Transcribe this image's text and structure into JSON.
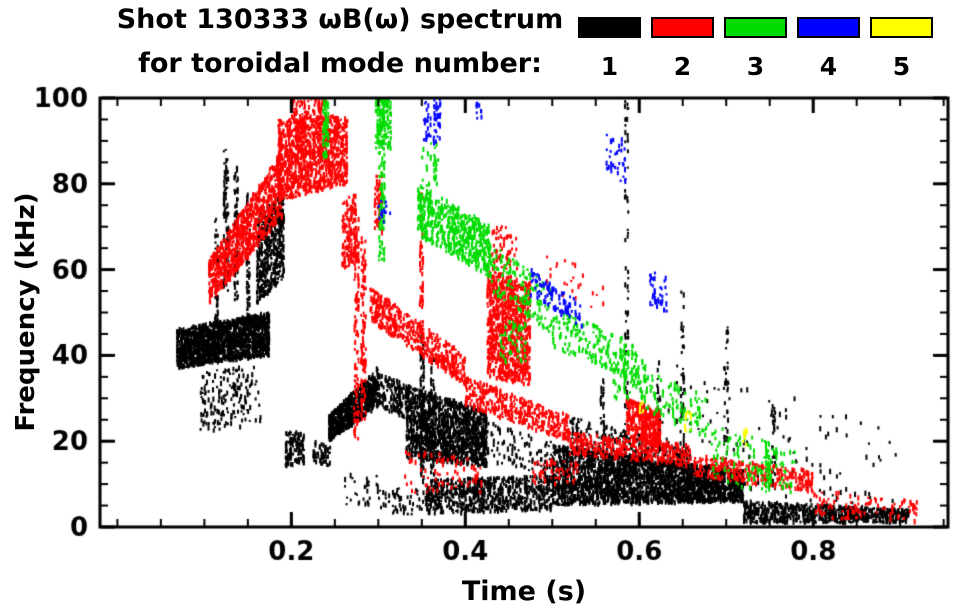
{
  "chart_data": {
    "type": "scatter",
    "title": "Shot 130333 ωB(ω) spectrum",
    "subtitle": "for toroidal mode number:",
    "xlabel": "Time (s)",
    "ylabel": "Frequency (kHz)",
    "xlim": [
      -0.02,
      0.955
    ],
    "ylim": [
      0,
      100
    ],
    "xticks": [
      0.2,
      0.4,
      0.6,
      0.8
    ],
    "xtick_labels": [
      "0.2",
      "0.4",
      "0.6",
      "0.8"
    ],
    "yticks": [
      0,
      20,
      40,
      60,
      80,
      100
    ],
    "ytick_labels": [
      "0",
      "20",
      "40",
      "60",
      "80",
      "100"
    ],
    "x_minor_step": 0.05,
    "y_minor_step": 5,
    "grid": false,
    "legend_position": "top-right",
    "legend": [
      {
        "label": "1",
        "color": "#000000"
      },
      {
        "label": "2",
        "color": "#ff0000"
      },
      {
        "label": "3",
        "color": "#00dc00"
      },
      {
        "label": "4",
        "color": "#0000ff"
      },
      {
        "label": "5",
        "color": "#ffff00"
      }
    ],
    "cluster_format": "[t_start, t_end, f_low_at_start, f_high_at_start, f_low_at_end, f_high_at_end, n_points]",
    "series": [
      {
        "name": "n=1",
        "mode": 1,
        "color": "#000000",
        "clusters": [
          [
            0.068,
            0.175,
            37,
            46,
            40,
            50,
            1600
          ],
          [
            0.095,
            0.165,
            22,
            36,
            24,
            38,
            180
          ],
          [
            0.122,
            0.128,
            55,
            88,
            55,
            88,
            90
          ],
          [
            0.134,
            0.139,
            50,
            85,
            50,
            85,
            70
          ],
          [
            0.148,
            0.153,
            46,
            78,
            46,
            78,
            60
          ],
          [
            0.112,
            0.116,
            48,
            72,
            48,
            72,
            40
          ],
          [
            0.16,
            0.192,
            52,
            72,
            58,
            78,
            500
          ],
          [
            0.193,
            0.215,
            14,
            22,
            15,
            22,
            120
          ],
          [
            0.225,
            0.245,
            15,
            20,
            14,
            19,
            60
          ],
          [
            0.243,
            0.3,
            20,
            26,
            28,
            37,
            700
          ],
          [
            0.3,
            0.335,
            28,
            36,
            25,
            33,
            150
          ],
          [
            0.332,
            0.425,
            16,
            33,
            14,
            27,
            1300
          ],
          [
            0.348,
            0.353,
            10,
            45,
            10,
            45,
            80
          ],
          [
            0.36,
            0.365,
            8,
            40,
            8,
            40,
            60
          ],
          [
            0.355,
            0.5,
            3,
            11,
            4,
            12,
            700
          ],
          [
            0.5,
            0.72,
            5,
            19,
            6,
            13,
            2600
          ],
          [
            0.52,
            0.66,
            18,
            26,
            12,
            18,
            300
          ],
          [
            0.72,
            0.91,
            1,
            6,
            1,
            4,
            700
          ],
          [
            0.583,
            0.588,
            20,
            100,
            20,
            100,
            60
          ],
          [
            0.647,
            0.652,
            15,
            55,
            15,
            55,
            40
          ],
          [
            0.697,
            0.703,
            12,
            47,
            12,
            47,
            40
          ],
          [
            0.752,
            0.757,
            8,
            30,
            8,
            30,
            30
          ],
          [
            0.62,
            0.625,
            15,
            37,
            15,
            37,
            25
          ],
          [
            0.555,
            0.56,
            20,
            35,
            20,
            35,
            25
          ],
          [
            0.6,
            0.9,
            8,
            40,
            5,
            25,
            120
          ],
          [
            0.3,
            0.36,
            3,
            9,
            3,
            9,
            60
          ],
          [
            0.26,
            0.3,
            5,
            12,
            5,
            12,
            30
          ],
          [
            0.42,
            0.5,
            15,
            25,
            12,
            20,
            100
          ]
        ]
      },
      {
        "name": "n=2",
        "mode": 2,
        "color": "#ff0000",
        "clusters": [
          [
            0.105,
            0.19,
            52,
            62,
            72,
            88,
            900
          ],
          [
            0.185,
            0.265,
            76,
            95,
            80,
            96,
            1100
          ],
          [
            0.2,
            0.24,
            95,
            100,
            95,
            100,
            80
          ],
          [
            0.272,
            0.278,
            20,
            72,
            20,
            72,
            120
          ],
          [
            0.28,
            0.286,
            25,
            68,
            25,
            68,
            100
          ],
          [
            0.258,
            0.275,
            60,
            76,
            62,
            78,
            150
          ],
          [
            0.295,
            0.305,
            68,
            82,
            68,
            82,
            60
          ],
          [
            0.29,
            0.4,
            48,
            56,
            33,
            40,
            450
          ],
          [
            0.4,
            0.52,
            28,
            35,
            20,
            26,
            400
          ],
          [
            0.52,
            0.66,
            17,
            22,
            14,
            19,
            350
          ],
          [
            0.66,
            0.8,
            12,
            17,
            8,
            13,
            300
          ],
          [
            0.347,
            0.352,
            40,
            80,
            40,
            80,
            70
          ],
          [
            0.425,
            0.475,
            35,
            60,
            33,
            57,
            900
          ],
          [
            0.43,
            0.46,
            60,
            70,
            60,
            70,
            60
          ],
          [
            0.585,
            0.625,
            21,
            30,
            19,
            27,
            350
          ],
          [
            0.49,
            0.56,
            55,
            65,
            50,
            60,
            25
          ],
          [
            0.8,
            0.92,
            2,
            9,
            1,
            6,
            100
          ],
          [
            0.33,
            0.42,
            8,
            18,
            8,
            16,
            80
          ],
          [
            0.47,
            0.53,
            10,
            16,
            10,
            15,
            60
          ]
        ]
      },
      {
        "name": "n=3",
        "mode": 3,
        "color": "#00dc00",
        "clusters": [
          [
            0.236,
            0.243,
            86,
            100,
            86,
            100,
            70
          ],
          [
            0.3,
            0.308,
            62,
            100,
            62,
            100,
            110
          ],
          [
            0.296,
            0.315,
            88,
            100,
            88,
            100,
            120
          ],
          [
            0.345,
            0.43,
            68,
            80,
            58,
            70,
            550
          ],
          [
            0.43,
            0.5,
            55,
            66,
            45,
            56,
            150
          ],
          [
            0.5,
            0.6,
            42,
            52,
            33,
            42,
            200
          ],
          [
            0.6,
            0.68,
            28,
            38,
            20,
            30,
            120
          ],
          [
            0.68,
            0.78,
            10,
            24,
            8,
            18,
            120
          ],
          [
            0.745,
            0.75,
            8,
            20,
            8,
            20,
            40
          ],
          [
            0.35,
            0.37,
            78,
            90,
            78,
            90,
            30
          ],
          [
            0.44,
            0.47,
            38,
            48,
            38,
            48,
            50
          ],
          [
            0.57,
            0.61,
            30,
            40,
            30,
            40,
            60
          ]
        ]
      },
      {
        "name": "n=4",
        "mode": 4,
        "color": "#0000ff",
        "clusters": [
          [
            0.352,
            0.372,
            88,
            100,
            90,
            100,
            60
          ],
          [
            0.475,
            0.535,
            54,
            60,
            46,
            52,
            90
          ],
          [
            0.562,
            0.585,
            82,
            92,
            80,
            90,
            40
          ],
          [
            0.612,
            0.632,
            52,
            60,
            50,
            58,
            40
          ],
          [
            0.3,
            0.315,
            70,
            76,
            70,
            76,
            12
          ],
          [
            0.41,
            0.42,
            95,
            100,
            95,
            100,
            10
          ]
        ]
      },
      {
        "name": "n=5",
        "mode": 5,
        "color": "#ffff00",
        "clusters": [
          [
            0.652,
            0.66,
            22,
            27,
            22,
            27,
            10
          ],
          [
            0.718,
            0.724,
            19,
            23,
            19,
            23,
            8
          ],
          [
            0.6,
            0.605,
            26,
            29,
            26,
            29,
            5
          ]
        ]
      }
    ]
  }
}
